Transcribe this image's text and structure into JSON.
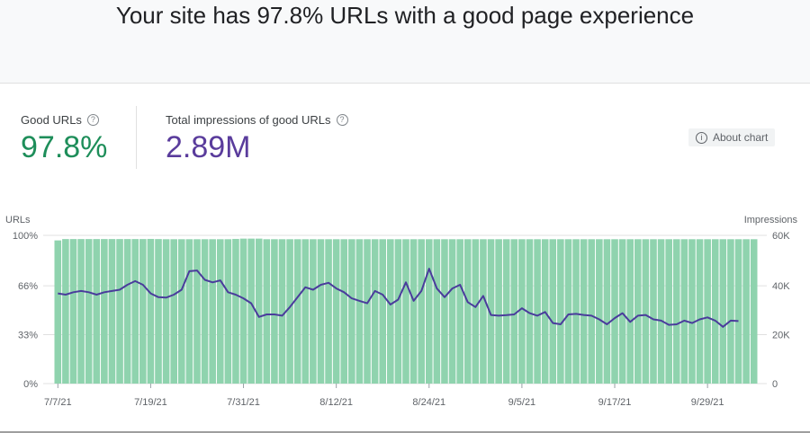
{
  "header": {
    "title": "Your site has 97.8% URLs with a good page experience"
  },
  "metrics": {
    "good_urls": {
      "label": "Good URLs",
      "value": "97.8%"
    },
    "impressions": {
      "label": "Total impressions of good URLs",
      "value": "2.89M"
    }
  },
  "about_chart": {
    "label": "About chart"
  },
  "colors": {
    "bars": "#8fd3ae",
    "line": "#4a3c9c",
    "good": "#1e8e5a",
    "impressions": "#5a3c9c"
  },
  "chart_data": {
    "type": "bar",
    "left_axis": {
      "title": "URLs",
      "ticks": [
        "100%",
        "66%",
        "33%",
        "0%"
      ],
      "range": [
        0,
        100
      ]
    },
    "right_axis": {
      "title": "Impressions",
      "ticks": [
        "60K",
        "40K",
        "20K",
        "0"
      ],
      "range": [
        0,
        60000
      ]
    },
    "x_tick_labels": [
      "7/7/21",
      "7/19/21",
      "7/31/21",
      "8/12/21",
      "8/24/21",
      "9/5/21",
      "9/17/21",
      "9/29/21"
    ],
    "x_tick_index": [
      0,
      12,
      24,
      36,
      48,
      60,
      72,
      84
    ],
    "good_urls_pct": [
      96.6,
      97.5,
      97.5,
      97.5,
      97.5,
      97.5,
      97.5,
      97.5,
      97.5,
      97.5,
      97.5,
      97.5,
      97.6,
      97.5,
      97.4,
      97.4,
      97.4,
      97.4,
      97.4,
      97.4,
      97.4,
      97.4,
      97.4,
      97.6,
      97.8,
      97.8,
      97.8,
      97.4,
      97.4,
      97.4,
      97.4,
      97.4,
      97.4,
      97.4,
      97.4,
      97.4,
      97.4,
      97.4,
      97.4,
      97.4,
      97.4,
      97.4,
      97.4,
      97.4,
      97.4,
      97.4,
      97.4,
      97.4,
      97.4,
      97.4,
      97.4,
      97.4,
      97.4,
      97.4,
      97.4,
      97.4,
      97.4,
      97.4,
      97.4,
      97.4,
      97.4,
      97.4,
      97.4,
      97.4,
      97.4,
      97.4,
      97.4,
      97.4,
      97.4,
      97.4,
      97.4,
      97.4,
      97.4,
      97.4,
      97.4,
      97.4,
      97.4,
      97.4,
      97.4,
      97.4,
      97.4,
      97.4,
      97.4,
      97.4,
      97.4,
      97.4,
      97.4,
      97.4,
      97.4,
      97.4,
      97.4
    ],
    "impressions": [
      36500,
      36000,
      37000,
      37500,
      37000,
      36000,
      37000,
      37500,
      38000,
      40000,
      41500,
      40000,
      36500,
      35000,
      34800,
      36000,
      38000,
      45500,
      45800,
      42000,
      41000,
      41800,
      37000,
      36000,
      34500,
      32500,
      27000,
      28000,
      28000,
      27500,
      31000,
      35000,
      39000,
      38000,
      40000,
      40800,
      38500,
      37000,
      34500,
      33500,
      32500,
      37500,
      36000,
      32000,
      34000,
      41000,
      33500,
      37500,
      46500,
      38500,
      35000,
      38500,
      40000,
      33000,
      31000,
      35500,
      27800,
      27500,
      27700,
      28000,
      30500,
      28500,
      27500,
      29000,
      24500,
      24000,
      28000,
      28200,
      27800,
      27500,
      26000,
      24000,
      26500,
      28500,
      25000,
      27500,
      27800,
      26000,
      25500,
      23800,
      24000,
      25500,
      24500,
      26000,
      26800,
      25500,
      23000,
      25500,
      25300
    ]
  }
}
